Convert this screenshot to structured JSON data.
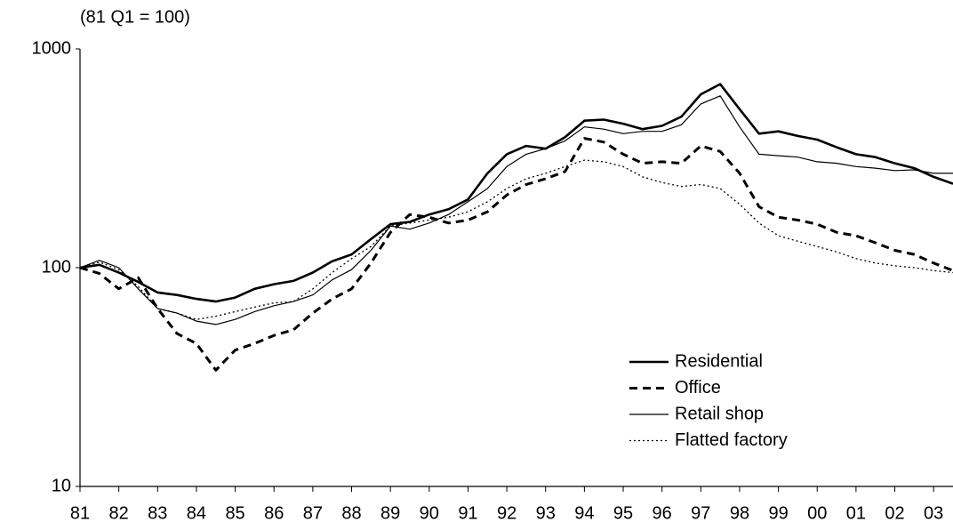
{
  "chart_data": {
    "type": "line",
    "y_label": "(81 Q1 = 100)",
    "log_y": true,
    "grid": false,
    "legend": "lower right",
    "xlim": [
      1981,
      2003.5
    ],
    "xticks": [
      {
        "value": 1981,
        "label": "81"
      },
      {
        "value": 1982,
        "label": "82"
      },
      {
        "value": 1983,
        "label": "83"
      },
      {
        "value": 1984,
        "label": "84"
      },
      {
        "value": 1985,
        "label": "85"
      },
      {
        "value": 1986,
        "label": "86"
      },
      {
        "value": 1987,
        "label": "87"
      },
      {
        "value": 1988,
        "label": "88"
      },
      {
        "value": 1989,
        "label": "89"
      },
      {
        "value": 1990,
        "label": "90"
      },
      {
        "value": 1991,
        "label": "91"
      },
      {
        "value": 1992,
        "label": "92"
      },
      {
        "value": 1993,
        "label": "93"
      },
      {
        "value": 1994,
        "label": "94"
      },
      {
        "value": 1995,
        "label": "95"
      },
      {
        "value": 1996,
        "label": "96"
      },
      {
        "value": 1997,
        "label": "97"
      },
      {
        "value": 1998,
        "label": "98"
      },
      {
        "value": 1999,
        "label": "99"
      },
      {
        "value": 2000,
        "label": "00"
      },
      {
        "value": 2001,
        "label": "01"
      },
      {
        "value": 2002,
        "label": "02"
      },
      {
        "value": 2003,
        "label": "03"
      }
    ],
    "ylim": [
      10,
      1000
    ],
    "yticks": [
      10,
      100,
      1000
    ],
    "x": [
      1981,
      1981.5,
      1982,
      1982.5,
      1983,
      1983.5,
      1984,
      1984.5,
      1985,
      1985.5,
      1986,
      1986.5,
      1987,
      1987.5,
      1988,
      1988.5,
      1989,
      1989.5,
      1990,
      1990.5,
      1991,
      1991.5,
      1992,
      1992.5,
      1993,
      1993.5,
      1994,
      1994.5,
      1995,
      1995.5,
      1996,
      1996.5,
      1997,
      1997.5,
      1998,
      1998.5,
      1999,
      1999.5,
      2000,
      2000.5,
      2001,
      2001.5,
      2002,
      2002.5,
      2003,
      2003.5
    ],
    "series": [
      {
        "name": "Residential",
        "color": "#000000",
        "width": 2.6,
        "dash": "solid",
        "values": [
          100,
          103,
          95,
          86,
          77,
          75,
          72,
          70,
          73,
          80,
          84,
          87,
          95,
          107,
          115,
          135,
          158,
          162,
          175,
          185,
          205,
          270,
          330,
          360,
          350,
          395,
          470,
          475,
          455,
          430,
          445,
          490,
          620,
          690,
          530,
          410,
          420,
          400,
          385,
          355,
          330,
          320,
          300,
          285,
          260,
          242
        ]
      },
      {
        "name": "Office",
        "color": "#000000",
        "width": 3,
        "dash": "dash",
        "values": [
          100,
          94,
          80,
          90,
          65,
          50,
          45,
          34,
          42,
          45,
          49,
          52,
          62,
          72,
          80,
          105,
          145,
          175,
          170,
          160,
          165,
          180,
          215,
          240,
          255,
          275,
          390,
          375,
          330,
          300,
          305,
          300,
          360,
          340,
          270,
          190,
          170,
          165,
          158,
          145,
          140,
          130,
          120,
          115,
          105,
          97
        ]
      },
      {
        "name": "Retail shop",
        "color": "#000000",
        "width": 1.2,
        "dash": "solid",
        "values": [
          100,
          108,
          100,
          80,
          65,
          62,
          57,
          55,
          58,
          63,
          67,
          70,
          75,
          88,
          98,
          120,
          155,
          150,
          160,
          175,
          200,
          230,
          290,
          330,
          350,
          380,
          440,
          430,
          410,
          420,
          420,
          450,
          560,
          610,
          440,
          330,
          325,
          320,
          305,
          300,
          290,
          285,
          278,
          280,
          270,
          270
        ]
      },
      {
        "name": "Flatted factory",
        "color": "#000000",
        "width": 1.3,
        "dash": "dot",
        "values": [
          100,
          106,
          98,
          82,
          65,
          62,
          58,
          60,
          63,
          66,
          69,
          70,
          80,
          95,
          110,
          125,
          155,
          160,
          165,
          170,
          180,
          200,
          230,
          255,
          270,
          290,
          310,
          305,
          290,
          260,
          245,
          235,
          240,
          230,
          195,
          160,
          140,
          132,
          125,
          118,
          110,
          105,
          102,
          100,
          97,
          95
        ]
      }
    ]
  }
}
